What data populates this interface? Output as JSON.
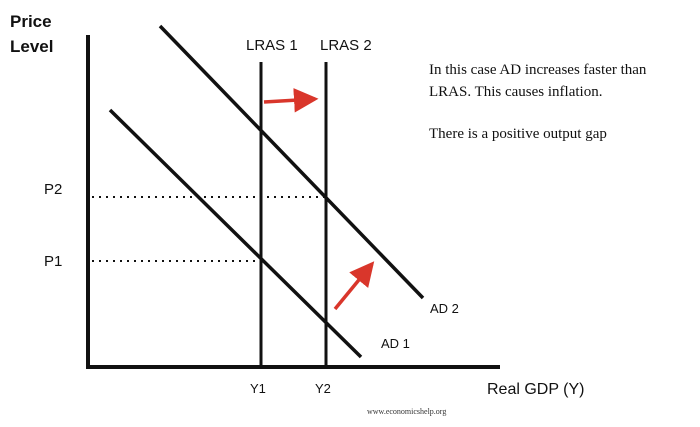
{
  "axes": {
    "y_title_line1": "Price",
    "y_title_line2": "Level",
    "x_title": "Real GDP (Y)"
  },
  "curves": {
    "lras1": "LRAS 1",
    "lras2": "LRAS 2",
    "ad1": "AD 1",
    "ad2": "AD 2"
  },
  "ticks": {
    "p1": "P1",
    "p2": "P2",
    "y1": "Y1",
    "y2": "Y2"
  },
  "notes": {
    "line1": "In this case AD increases faster than",
    "line2": "LRAS. This causes inflation.",
    "line3": "There is a positive output gap"
  },
  "credit": "www.economicshelp.org",
  "colors": {
    "line": "#111111",
    "arrow": "#d9362b"
  }
}
